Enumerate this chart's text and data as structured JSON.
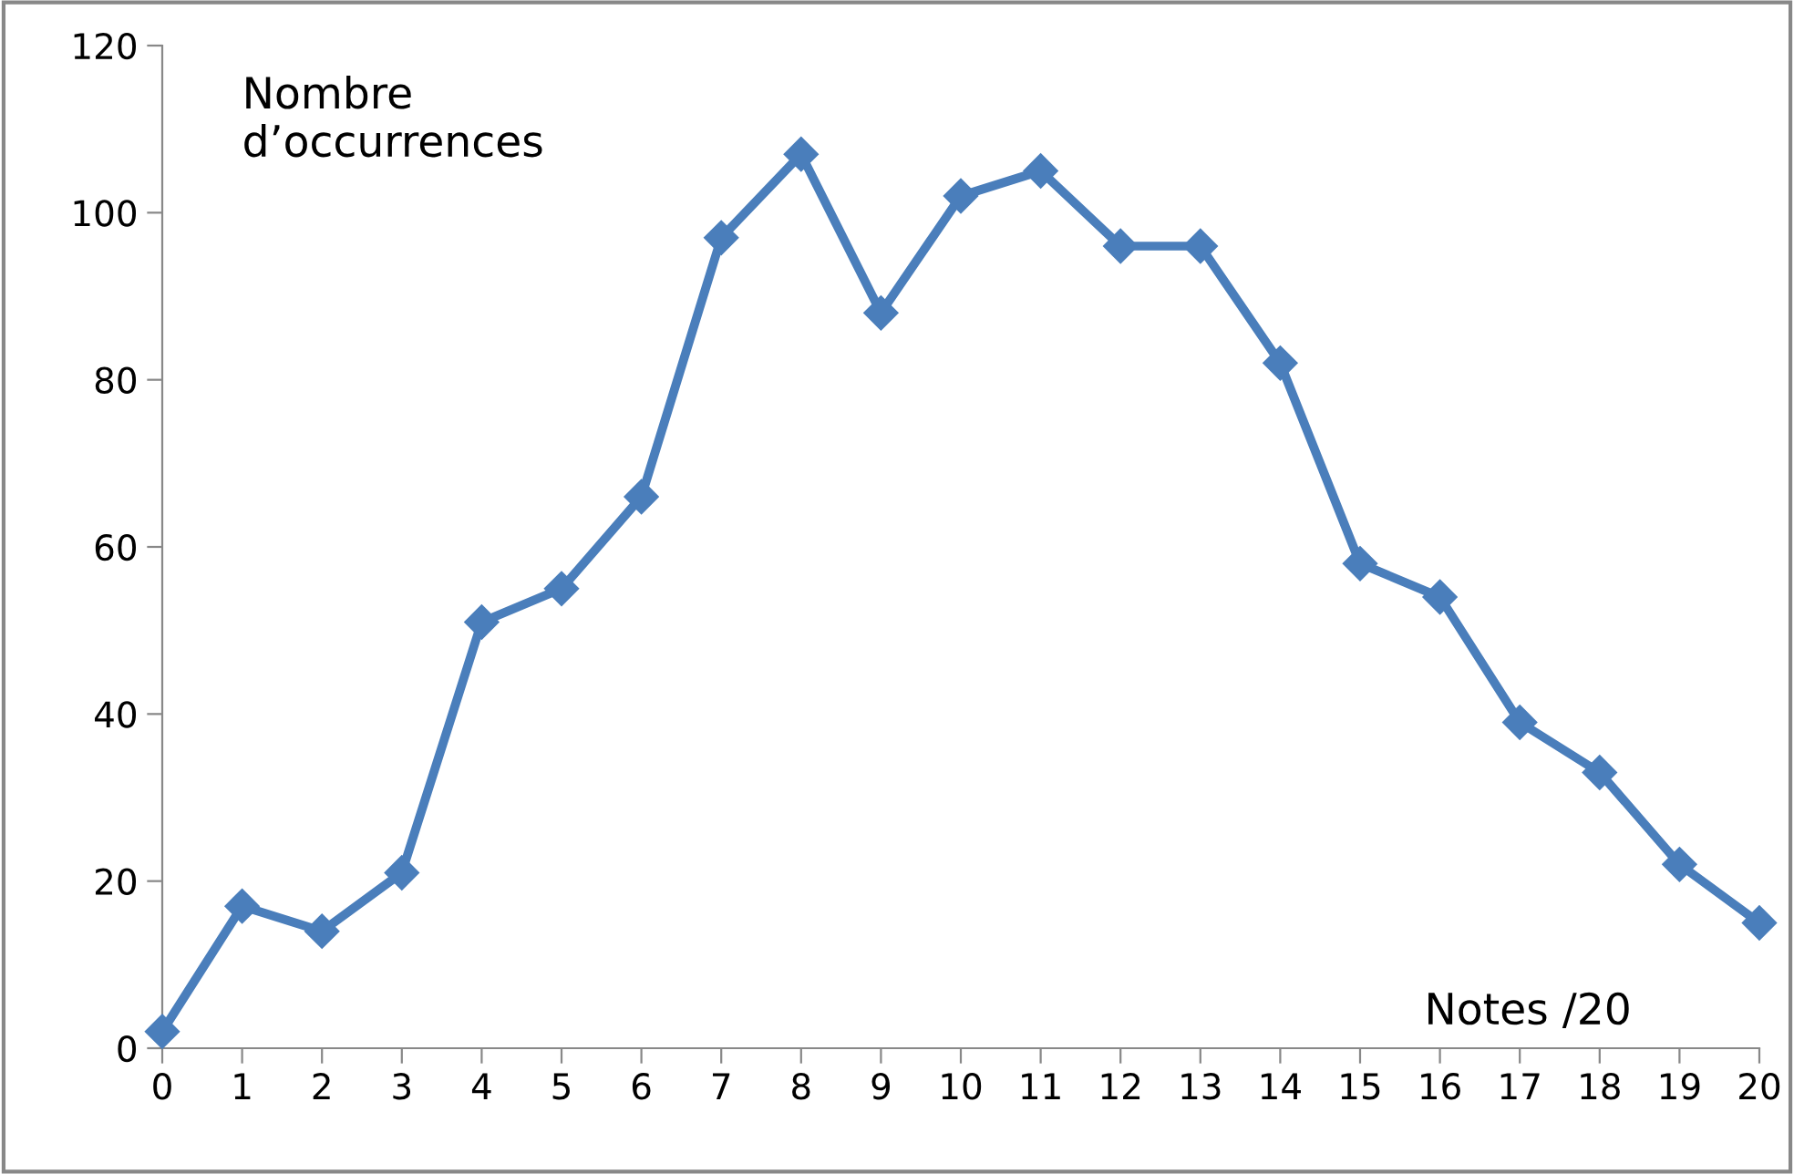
{
  "chart_data": {
    "type": "line",
    "ylabel": "Nombre\nd’occurrences",
    "xlabel": "Notes /20",
    "x": [
      0,
      1,
      2,
      3,
      4,
      5,
      6,
      7,
      8,
      9,
      10,
      11,
      12,
      13,
      14,
      15,
      16,
      17,
      18,
      19,
      20
    ],
    "series": [
      {
        "color": "#4a7ebb",
        "values": [
          2,
          17,
          14,
          21,
          51,
          55,
          66,
          97,
          107,
          88,
          102,
          105,
          96,
          96,
          82,
          58,
          54,
          39,
          33,
          22,
          15
        ]
      }
    ],
    "xlim": [
      0,
      20
    ],
    "xticks": [
      0,
      1,
      2,
      3,
      4,
      5,
      6,
      7,
      8,
      9,
      10,
      11,
      12,
      13,
      14,
      15,
      16,
      17,
      18,
      19,
      20
    ],
    "ylim": [
      0,
      120
    ],
    "yticks": [
      0,
      20,
      40,
      60,
      80,
      100,
      120
    ],
    "marker": "diamond",
    "line_style": "solid",
    "grid": false,
    "legend": false
  }
}
